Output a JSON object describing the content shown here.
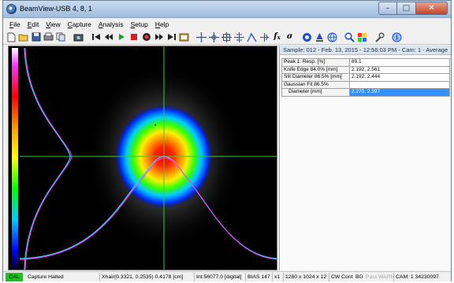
{
  "window": {
    "title": "BeamView-USB 4, 8, 1"
  },
  "menu": [
    "File",
    "Edit",
    "View",
    "Capture",
    "Analysis",
    "Setup",
    "Help"
  ],
  "toolbar": {
    "icons": [
      "new-file-icon",
      "open-folder-icon",
      "save-icon",
      "print-icon",
      "copy-icon",
      "camera-icon",
      "skip-back-icon",
      "rewind-icon",
      "play-icon",
      "stop-icon",
      "record-icon",
      "fast-forward-icon",
      "skip-end-icon",
      "snapshot-icon",
      "crosshair-icon",
      "crosshair-center-icon",
      "crosshair-box-icon",
      "grid-icon",
      "profile-icon",
      "fit-icon",
      "function-icon",
      "sigma-icon",
      "target-icon",
      "beam-icon",
      "globe-icon",
      "zoom-icon",
      "palette-icon",
      "wrench-icon",
      "info-icon"
    ]
  },
  "results": {
    "sample_text": "Sample: 012 - Feb. 13, 2015 - 12:56:03 PM - Cam: 1 - Average",
    "rows": [
      {
        "label": "Peak 1: Resp. [%]",
        "value": "89.1",
        "selected": false
      },
      {
        "label": "Knife Edge 84.0% [mm]",
        "value": "2.192, 2.561",
        "selected": false
      },
      {
        "label": "Slit Diameter 86.5% [mm]",
        "value": "2.192, 2.444",
        "selected": false
      },
      {
        "label": "Gaussian Fit 86.5%",
        "value": "",
        "selected": false
      },
      {
        "label": "Diameter [mm]",
        "value": "2.270, 2.397",
        "selected": true
      }
    ]
  },
  "status": {
    "cal": "CAL",
    "message": "Capture Halted",
    "xhair": "Xhair(0.3321, 0.2535) 0.4178 [cm]",
    "int": "Int:56077.0 [digital]",
    "bias": "BIAS 147",
    "zoom": "x1",
    "resolution": "1280 x 1024 x 12",
    "flags": [
      "CW",
      "Cont",
      "BG",
      "Pass",
      "WARN"
    ],
    "cam": "CAM: 1 34230097"
  },
  "colors": {
    "cal_badge": "#1fbf1f",
    "selection": "#3390ff",
    "crosshair": "#33cc33",
    "profile_magenta": "#ff33ff",
    "profile_cyan": "#33d6ff"
  }
}
